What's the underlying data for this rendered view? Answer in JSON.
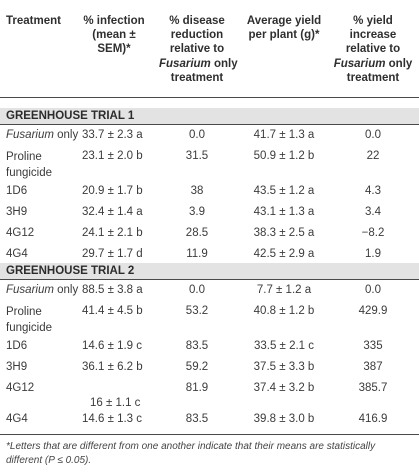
{
  "header": {
    "treatment": "Treatment",
    "infection": [
      "% infection",
      "(mean ±",
      "SEM)*"
    ],
    "disease_reduction": [
      "% disease",
      "reduction",
      "relative to"
    ],
    "yield": [
      "Average yield",
      "per plant (g)*"
    ],
    "yield_increase": [
      "% yield",
      "increase",
      "relative to"
    ],
    "fusarium": "Fusarium",
    "only": "only",
    "treatment_word": "treatment"
  },
  "sections": [
    {
      "title": "GREENHOUSE TRIAL 1",
      "rows": [
        {
          "treatment_it": "Fusarium",
          "treatment_rest": "only",
          "infection": "33.7 ± 2.3 a",
          "disease_reduction": "0.0",
          "yield": "41.7 ± 1.3 a",
          "yield_increase": "0.0"
        },
        {
          "treatment_l1": "Proline",
          "treatment_l2": "fungicide",
          "infection": "23.1 ± 2.0 b",
          "disease_reduction": "31.5",
          "yield": "50.9 ± 1.2 b",
          "yield_increase": "22"
        },
        {
          "treatment": "1D6",
          "infection": "20.9 ± 1.7 b",
          "disease_reduction": "38",
          "yield": "43.5 ± 1.2 a",
          "yield_increase": "4.3"
        },
        {
          "treatment": "3H9",
          "infection": "32.4 ± 1.4 a",
          "disease_reduction": "3.9",
          "yield": "43.1 ± 1.3 a",
          "yield_increase": "3.4"
        },
        {
          "treatment": "4G12",
          "infection": "24.1 ± 2.1 b",
          "disease_reduction": "28.5",
          "yield": "38.3 ± 2.5 a",
          "yield_increase": "−8.2"
        },
        {
          "treatment": "4G4",
          "infection": "29.7 ± 1.7 d",
          "disease_reduction": "11.9",
          "yield": "42.5 ± 2.9 a",
          "yield_increase": "1.9"
        }
      ]
    },
    {
      "title": "GREENHOUSE TRIAL 2",
      "rows": [
        {
          "treatment_it": "Fusarium",
          "treatment_rest": "only",
          "infection": "88.5 ± 3.8 a",
          "disease_reduction": "0.0",
          "yield": "7.7 ± 1.2 a",
          "yield_increase": "0.0"
        },
        {
          "treatment_l1": "Proline",
          "treatment_l2": "fungicide",
          "infection": "41.4 ± 4.5 b",
          "disease_reduction": "53.2",
          "yield": "40.8 ± 1.2 b",
          "yield_increase": "429.9"
        },
        {
          "treatment": "1D6",
          "infection": "14.6 ± 1.9 c",
          "disease_reduction": "83.5",
          "yield": "33.5 ± 2.1 c",
          "yield_increase": "335"
        },
        {
          "treatment": "3H9",
          "infection": "36.1 ± 6.2 b",
          "disease_reduction": "59.2",
          "yield": "37.5 ± 3.3 b",
          "yield_increase": "387"
        },
        {
          "treatment": "4G12",
          "infection": "16 ± 1.1 c",
          "disease_reduction": "81.9",
          "yield": "37.4 ± 3.2 b",
          "yield_increase": "385.7"
        },
        {
          "treatment": "4G4",
          "infection": "14.6 ± 1.3 c",
          "disease_reduction": "83.5",
          "yield": "39.8 ± 3.0 b",
          "yield_increase": "416.9"
        }
      ]
    }
  ],
  "footnote": "*Letters that are different from one another indicate that their means are statistically different (P ≤ 0.05)."
}
